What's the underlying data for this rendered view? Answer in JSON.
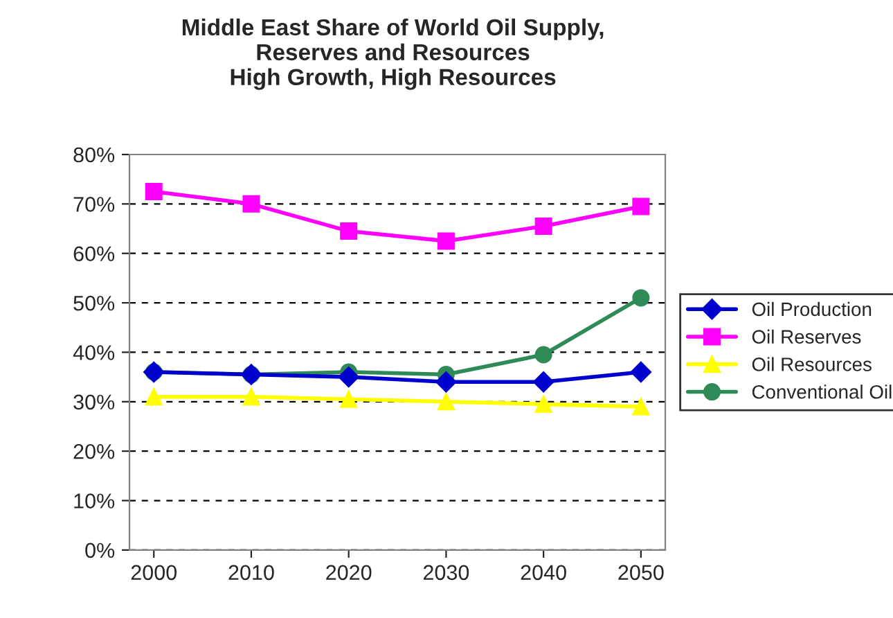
{
  "chart_data": {
    "type": "line",
    "title": "Middle East Share of World Oil Supply,\nReserves and Resources\nHigh Growth, High Resources",
    "categories": [
      "2000",
      "2010",
      "2020",
      "2030",
      "2040",
      "2050"
    ],
    "series": [
      {
        "name": "Oil Production",
        "color": "#0000cc",
        "marker": "diamond",
        "values": [
          36,
          35.5,
          35,
          34,
          34,
          36
        ]
      },
      {
        "name": "Oil Reserves",
        "color": "#ff00ff",
        "marker": "square",
        "values": [
          72.5,
          70,
          64.5,
          62.5,
          65.5,
          69.5
        ]
      },
      {
        "name": "Oil Resources",
        "color": "#ffff00",
        "marker": "triangle",
        "values": [
          31,
          31,
          30.5,
          30,
          29.5,
          29
        ]
      },
      {
        "name": "Conventional Oil",
        "color": "#2e8b57",
        "marker": "circle",
        "values": [
          36,
          35.5,
          36,
          35.5,
          39.5,
          51
        ]
      }
    ],
    "ylim": [
      0,
      80
    ],
    "yticks": [
      {
        "value": 0,
        "label": "0%"
      },
      {
        "value": 10,
        "label": "10%"
      },
      {
        "value": 20,
        "label": "20%"
      },
      {
        "value": 30,
        "label": "30%"
      },
      {
        "value": 40,
        "label": "40%"
      },
      {
        "value": 50,
        "label": "50%"
      },
      {
        "value": 60,
        "label": "60%"
      },
      {
        "value": 70,
        "label": "70%"
      },
      {
        "value": 80,
        "label": "80%"
      }
    ],
    "grid": "y",
    "legend": "right",
    "line_style": "solid"
  }
}
